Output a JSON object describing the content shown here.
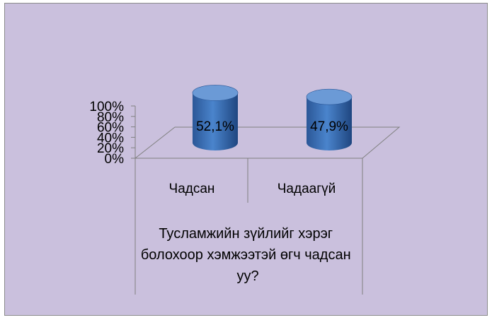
{
  "chart_data": {
    "type": "bar",
    "style": "3d-cylinder",
    "categories": [
      "Чадсан",
      "Чадаагүй"
    ],
    "values": [
      52.1,
      47.9
    ],
    "value_labels": [
      "52,1%",
      "47,9%"
    ],
    "y_ticks": [
      "0%",
      "20%",
      "40%",
      "60%",
      "80%",
      "100%"
    ],
    "ylim": [
      0,
      100
    ],
    "xlabel_lines": [
      "Тусламжийн зүйлийг хэрэг",
      "болохоор хэмжээтэй өгч чадсан",
      "уу?"
    ],
    "grid": false,
    "legend": "none",
    "colors": {
      "background": "#cac0dd",
      "bar_body": "#3a6fb2",
      "bar_top": "#6b9ad6",
      "axis": "#808080"
    }
  }
}
